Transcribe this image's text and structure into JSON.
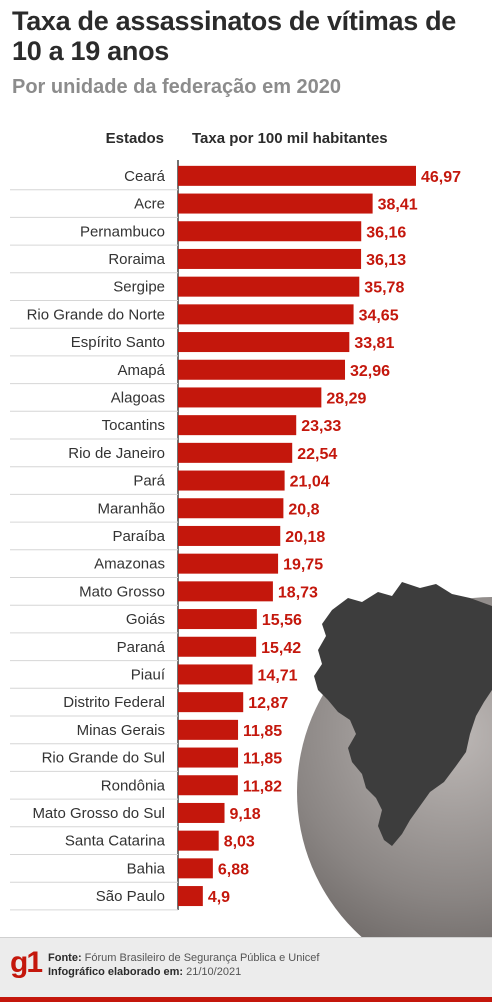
{
  "title": "Taxa de assassinatos de vítimas de 10 a 19 anos",
  "subtitle": "Por unidade da federação em 2020",
  "footer": {
    "logo": "g1",
    "source_label": "Fonte:",
    "source_text": "Fórum Brasileiro de Segurança Pública e Unicef",
    "credit_label": "Infográfico elaborado em:",
    "credit_text": "21/10/2021"
  },
  "colors": {
    "bar": "#c4170c",
    "value_text": "#c4170c",
    "map": "#3d3d3d",
    "globe": "#8a8583"
  },
  "chart_data": {
    "type": "bar",
    "orientation": "horizontal",
    "title": "Taxa de assassinatos de vítimas de 10 a 19 anos",
    "subtitle": "Por unidade da federação em 2020",
    "xlabel": "Taxa por 100 mil habitantes",
    "ylabel": "Estados",
    "categories": [
      "Ceará",
      "Acre",
      "Pernambuco",
      "Roraima",
      "Sergipe",
      "Rio Grande do Norte",
      "Espírito Santo",
      "Amapá",
      "Alagoas",
      "Tocantins",
      "Rio de Janeiro",
      "Pará",
      "Maranhão",
      "Paraíba",
      "Amazonas",
      "Mato Grosso",
      "Goiás",
      "Paraná",
      "Piauí",
      "Distrito Federal",
      "Minas Gerais",
      "Rio Grande do Sul",
      "Rondônia",
      "Mato Grosso do Sul",
      "Santa Catarina",
      "Bahia",
      "São Paulo"
    ],
    "values": [
      46.97,
      38.41,
      36.16,
      36.13,
      35.78,
      34.65,
      33.81,
      32.96,
      28.29,
      23.33,
      22.54,
      21.04,
      20.8,
      20.18,
      19.75,
      18.73,
      15.56,
      15.42,
      14.71,
      12.87,
      11.85,
      11.85,
      11.82,
      9.18,
      8.03,
      6.88,
      4.9
    ],
    "labels": [
      "46,97",
      "38,41",
      "36,16",
      "36,13",
      "35,78",
      "34,65",
      "33,81",
      "32,96",
      "28,29",
      "23,33",
      "22,54",
      "21,04",
      "20,8",
      "20,18",
      "19,75",
      "18,73",
      "15,56",
      "15,42",
      "14,71",
      "12,87",
      "11,85",
      "11,85",
      "11,82",
      "9,18",
      "8,03",
      "6,88",
      "4,9"
    ],
    "xlim": [
      0,
      46.97
    ],
    "grid": false
  }
}
